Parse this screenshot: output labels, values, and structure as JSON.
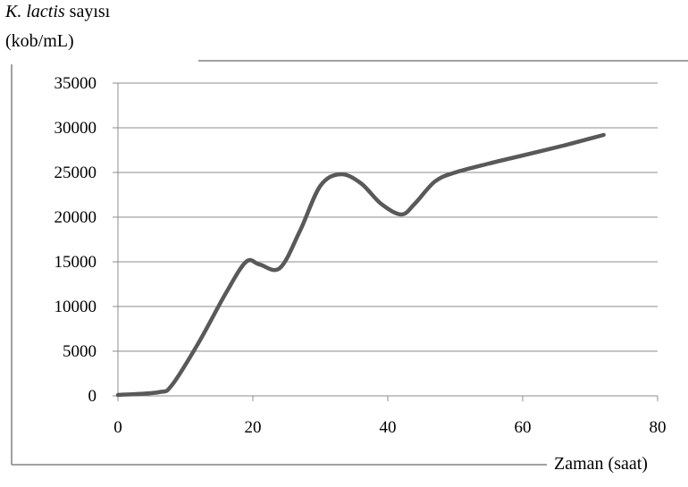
{
  "chart_data": {
    "type": "line",
    "ylabel_species": "K. lactis",
    "ylabel_word": "sayısı",
    "ylabel_unit": "(kob/mL)",
    "xlabel": "Zaman (saat)",
    "xlim": [
      0,
      80
    ],
    "ylim": [
      0,
      35000
    ],
    "x_ticks": [
      "0",
      "20",
      "40",
      "60",
      "80"
    ],
    "y_ticks": [
      "0",
      "5000",
      "10000",
      "15000",
      "20000",
      "25000",
      "30000",
      "35000"
    ],
    "grid": "horizontal",
    "line_color": "#595959",
    "series": [
      {
        "x": [
          0,
          6,
          8,
          12,
          16,
          19,
          21,
          24,
          27,
          30,
          33,
          36,
          39,
          42,
          44,
          47,
          50,
          55,
          60,
          66,
          72
        ],
        "values": [
          100,
          400,
          1200,
          6000,
          11500,
          15000,
          14700,
          14300,
          18500,
          23500,
          24800,
          23800,
          21500,
          20300,
          21500,
          24000,
          25000,
          26000,
          26900,
          28000,
          29200
        ]
      }
    ]
  }
}
